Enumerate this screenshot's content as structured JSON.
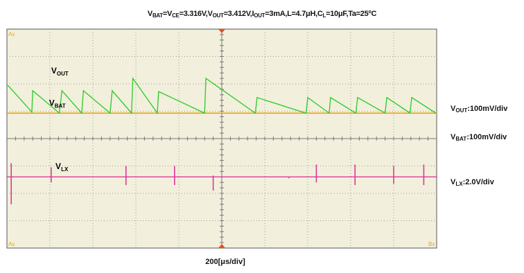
{
  "conditions": {
    "vbat_sym": "V",
    "vbat_sub": "BAT",
    "eq1": "=",
    "vce_sym": "V",
    "vce_sub": "CE",
    "vce_val": "=3.316V,",
    "vout_sym": "V",
    "vout_sub": "OUT",
    "vout_val": "=3.412V,",
    "iout_sym": "I",
    "iout_sub": "OUT",
    "iout_val": "=3mA,",
    "l_val": "L=4.7μH,",
    "cl_sym": "C",
    "cl_sub": "L",
    "cl_val": "=10μF,",
    "ta_val": "Ta=25",
    "ta_deg": "o",
    "ta_unit": "C"
  },
  "scales": {
    "vout": {
      "sym": "V",
      "sub": "OUT",
      "val": ":100mV/div"
    },
    "vbat": {
      "sym": "V",
      "sub": "BAT",
      "val": ":100mV/div"
    },
    "vlx": {
      "sym": "V",
      "sub": "LX",
      "val": ":2.0V/div"
    }
  },
  "xscale": "200[μs/div]",
  "chart_data": {
    "type": "line",
    "instrument": "oscilloscope",
    "grid": {
      "divisions_x": 10,
      "divisions_y": 8,
      "dotted": true,
      "center_axes_ticked": true
    },
    "xlabel": "200[μs/div]",
    "x_unit": "div",
    "xlim": [
      0,
      10
    ],
    "ylim": [
      -4,
      4
    ],
    "corner_marks": [
      "Ax",
      "Ax",
      "Bx"
    ],
    "background": "#f2f0dc",
    "series": [
      {
        "name": "VOUT",
        "color": "#33cc33",
        "scale": "100mV/div",
        "x": [
          0.02,
          0.58,
          0.6,
          1.22,
          1.28,
          1.74,
          1.78,
          2.4,
          2.45,
          2.9,
          2.93,
          3.5,
          3.53,
          4.6,
          4.63,
          5.78,
          5.82,
          6.96,
          7.0,
          7.5,
          7.53,
          8.12,
          8.16,
          8.8,
          8.84,
          9.38,
          9.42,
          9.98
        ],
        "y": [
          1.95,
          0.97,
          1.75,
          0.93,
          1.75,
          0.93,
          1.75,
          0.93,
          1.75,
          0.93,
          2.2,
          0.93,
          1.72,
          0.93,
          2.2,
          0.93,
          1.5,
          0.93,
          1.5,
          0.93,
          1.5,
          0.93,
          1.5,
          0.93,
          1.5,
          0.93,
          1.5,
          0.93
        ],
        "label_sym": "V",
        "label_sub": "OUT"
      },
      {
        "name": "VBAT",
        "color": "#e8a21a",
        "scale": "100mV/div",
        "x": [
          0,
          10
        ],
        "y": [
          0.93,
          0.93
        ],
        "label_sym": "V",
        "label_sub": "BAT"
      },
      {
        "name": "VLX",
        "color": "#e0359b",
        "scale": "2.0V/div",
        "baseline": -1.4,
        "spike_x": [
          0.1,
          1.03,
          2.77,
          3.9,
          4.8,
          6.56,
          7.2,
          8.1,
          9.0,
          9.7
        ],
        "spike_high": [
          -0.9,
          -1.05,
          -1.0,
          -1.0,
          -1.35,
          -1.4,
          -0.95,
          -0.95,
          -1.0,
          -0.95
        ],
        "spike_low": [
          -2.4,
          -1.6,
          -1.7,
          -1.7,
          -1.9,
          -1.45,
          -1.6,
          -1.7,
          -1.65,
          -1.7
        ],
        "label_sym": "V",
        "label_sub": "LX"
      }
    ],
    "trigger_marker_x": 5
  }
}
